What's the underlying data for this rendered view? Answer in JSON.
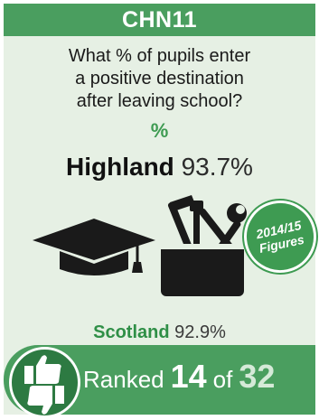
{
  "header": {
    "code": "CHN11"
  },
  "question": {
    "line1": "What % of pupils enter",
    "line2": "a positive destination",
    "line3": "after leaving school?",
    "unit": "%"
  },
  "highland": {
    "name": "Highland",
    "value": "93.7%"
  },
  "badge": {
    "line1": "2014/15",
    "line2": "Figures"
  },
  "scotland": {
    "name": "Scotland",
    "value": "92.9%"
  },
  "ranking": {
    "prefix": "Ranked",
    "rank": "14",
    "of": "of",
    "total": "32"
  },
  "icons": [
    "graduation-cap-icon",
    "toolbox-icon",
    "thumbs-up-icon",
    "thumbs-down-icon"
  ],
  "colors": {
    "header": "#4a9e5f",
    "background": "#e6f0e4",
    "accent": "#3e9b52",
    "dark_accent": "#2d7a42"
  }
}
